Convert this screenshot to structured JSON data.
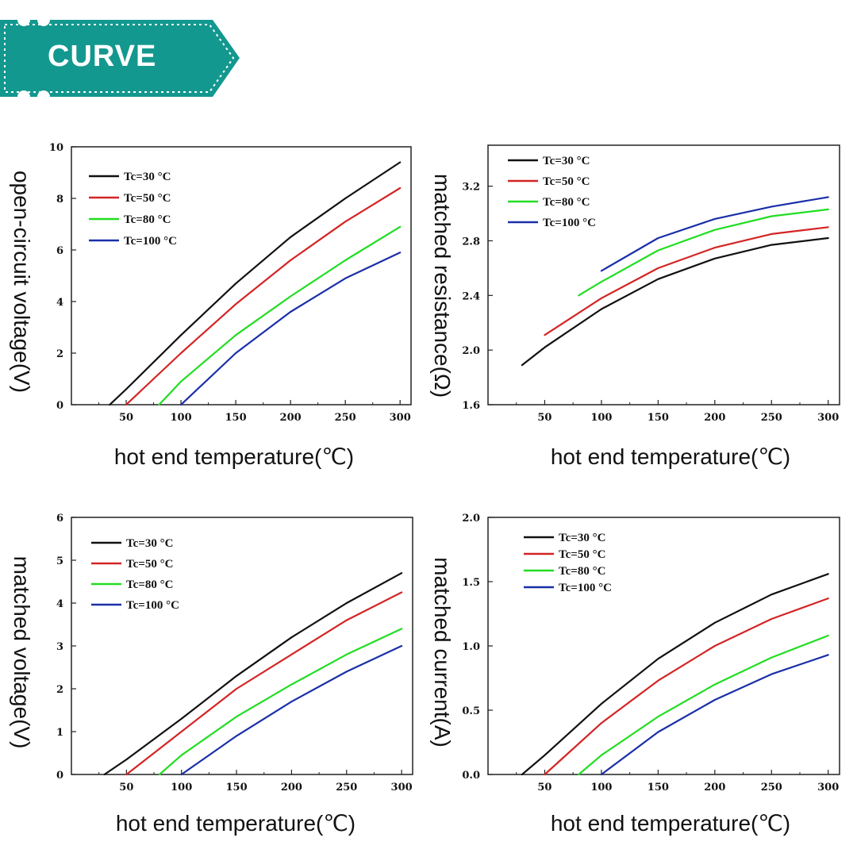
{
  "banner": {
    "title": "CURVE",
    "color": "#13988f"
  },
  "chart_data": [
    {
      "type": "line",
      "xlabel": "hot end temperature(℃)",
      "ylabel": "open-circuit voltage(V)",
      "xlim": [
        0,
        310
      ],
      "ylim": [
        0,
        10
      ],
      "xticks": [
        50,
        100,
        150,
        200,
        250,
        300
      ],
      "yticks": [
        0,
        2,
        4,
        6,
        8,
        10
      ],
      "ytick_labels": [
        "0",
        "2",
        "4",
        "6",
        "8",
        "10"
      ],
      "legend_position": "top-left",
      "series": [
        {
          "name": "Tc=30 °C",
          "color": "#111111",
          "x": [
            35,
            50,
            100,
            150,
            200,
            250,
            300
          ],
          "y": [
            0,
            0.6,
            2.7,
            4.7,
            6.5,
            8.0,
            9.4
          ]
        },
        {
          "name": "Tc=50 °C",
          "color": "#d42424",
          "x": [
            50,
            75,
            100,
            150,
            200,
            250,
            300
          ],
          "y": [
            0,
            1.0,
            2.0,
            3.9,
            5.6,
            7.1,
            8.4
          ]
        },
        {
          "name": "Tc=80 °C",
          "color": "#22dd22",
          "x": [
            80,
            100,
            150,
            200,
            250,
            300
          ],
          "y": [
            0,
            0.9,
            2.7,
            4.2,
            5.6,
            6.9
          ]
        },
        {
          "name": "Tc=100 °C",
          "color": "#1a2fa8",
          "x": [
            100,
            150,
            200,
            250,
            300
          ],
          "y": [
            0,
            2.0,
            3.6,
            4.9,
            5.9
          ]
        }
      ]
    },
    {
      "type": "line",
      "xlabel": "hot end temperature(℃)",
      "ylabel": "matched resistance(Ω)",
      "xlim": [
        0,
        310
      ],
      "ylim": [
        1.6,
        3.5
      ],
      "xticks": [
        50,
        100,
        150,
        200,
        250,
        300
      ],
      "yticks": [
        1.6,
        2.0,
        2.4,
        2.8,
        3.2
      ],
      "ytick_labels": [
        "1.6",
        "2.0",
        "2.4",
        "2.8",
        "3.2"
      ],
      "legend_position": "top-left",
      "series": [
        {
          "name": "Tc=30 °C",
          "color": "#111111",
          "x": [
            30,
            50,
            100,
            150,
            200,
            250,
            300
          ],
          "y": [
            1.89,
            2.02,
            2.3,
            2.52,
            2.67,
            2.77,
            2.82
          ]
        },
        {
          "name": "Tc=50 °C",
          "color": "#d42424",
          "x": [
            50,
            100,
            150,
            200,
            250,
            300
          ],
          "y": [
            2.11,
            2.38,
            2.6,
            2.75,
            2.85,
            2.9
          ]
        },
        {
          "name": "Tc=80 °C",
          "color": "#22dd22",
          "x": [
            80,
            100,
            150,
            200,
            250,
            300
          ],
          "y": [
            2.4,
            2.5,
            2.73,
            2.88,
            2.98,
            3.03
          ]
        },
        {
          "name": "Tc=100 °C",
          "color": "#1a2fa8",
          "x": [
            100,
            150,
            200,
            250,
            300
          ],
          "y": [
            2.58,
            2.82,
            2.96,
            3.05,
            3.12
          ]
        }
      ]
    },
    {
      "type": "line",
      "xlabel": "hot end temperature(℃)",
      "ylabel": "matched voltage(V)",
      "xlim": [
        0,
        310
      ],
      "ylim": [
        0,
        6
      ],
      "xticks": [
        50,
        100,
        150,
        200,
        250,
        300
      ],
      "yticks": [
        0,
        1,
        2,
        3,
        4,
        5,
        6
      ],
      "ytick_labels": [
        "0",
        "1",
        "2",
        "3",
        "4",
        "5",
        "6"
      ],
      "legend_position": "top-left",
      "series": [
        {
          "name": "Tc=30 °C",
          "color": "#111111",
          "x": [
            30,
            50,
            100,
            150,
            200,
            250,
            300
          ],
          "y": [
            0,
            0.35,
            1.3,
            2.3,
            3.2,
            4.0,
            4.7
          ]
        },
        {
          "name": "Tc=50 °C",
          "color": "#d42424",
          "x": [
            50,
            100,
            150,
            200,
            250,
            300
          ],
          "y": [
            0,
            1.0,
            2.0,
            2.8,
            3.6,
            4.25
          ]
        },
        {
          "name": "Tc=80 °C",
          "color": "#22dd22",
          "x": [
            80,
            100,
            150,
            200,
            250,
            300
          ],
          "y": [
            0,
            0.45,
            1.35,
            2.1,
            2.8,
            3.4
          ]
        },
        {
          "name": "Tc=100 °C",
          "color": "#1a2fa8",
          "x": [
            100,
            150,
            200,
            250,
            300
          ],
          "y": [
            0,
            0.9,
            1.7,
            2.4,
            3.0
          ]
        }
      ]
    },
    {
      "type": "line",
      "xlabel": "hot end temperature(℃)",
      "ylabel": "matched current(A)",
      "xlim": [
        0,
        310
      ],
      "ylim": [
        0,
        2.0
      ],
      "xticks": [
        50,
        100,
        150,
        200,
        250,
        300
      ],
      "yticks": [
        0,
        0.5,
        1.0,
        1.5,
        2.0
      ],
      "ytick_labels": [
        "0.0",
        "0.5",
        "1.0",
        "1.5",
        "2.0"
      ],
      "legend_position": "top-left",
      "series": [
        {
          "name": "Tc=30 °C",
          "color": "#111111",
          "x": [
            30,
            50,
            100,
            150,
            200,
            250,
            300
          ],
          "y": [
            0,
            0.15,
            0.55,
            0.9,
            1.18,
            1.4,
            1.56
          ]
        },
        {
          "name": "Tc=50 °C",
          "color": "#d42424",
          "x": [
            50,
            100,
            150,
            200,
            250,
            300
          ],
          "y": [
            0,
            0.4,
            0.73,
            1.0,
            1.21,
            1.37
          ]
        },
        {
          "name": "Tc=80 °C",
          "color": "#22dd22",
          "x": [
            80,
            100,
            150,
            200,
            250,
            300
          ],
          "y": [
            0,
            0.15,
            0.45,
            0.7,
            0.91,
            1.08
          ]
        },
        {
          "name": "Tc=100 °C",
          "color": "#1a2fa8",
          "x": [
            100,
            150,
            200,
            250,
            300
          ],
          "y": [
            0,
            0.33,
            0.58,
            0.78,
            0.93
          ]
        }
      ]
    }
  ]
}
